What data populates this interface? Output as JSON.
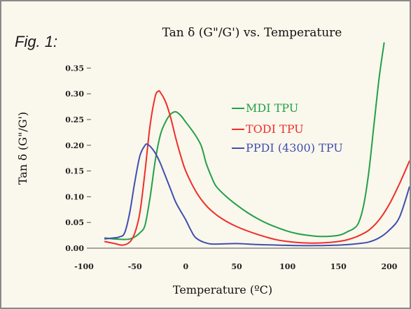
{
  "figure_label": "Fig. 1:",
  "chart_data": {
    "type": "line",
    "title": "Tan δ (G\"/G') vs. Temperature",
    "xlabel": "Temperature (ºC)",
    "ylabel": "Tan δ (G\"/G')",
    "xlim": [
      -100,
      220
    ],
    "ylim": [
      0,
      0.36
    ],
    "xticks": [
      -100,
      -50,
      0,
      50,
      100,
      150,
      200
    ],
    "xtick_labels": [
      "-100",
      "-50",
      "0",
      "50",
      "100",
      "150",
      "200"
    ],
    "yticks": [
      0,
      0.05,
      0.1,
      0.15,
      0.2,
      0.25,
      0.3,
      0.35
    ],
    "ytick_labels": [
      "0.00",
      "0.05",
      "0.10",
      "0.15",
      "0.20",
      "0.25",
      "0.30",
      "0.35"
    ],
    "grid": false,
    "legend_position": "inside-upper-right",
    "series": [
      {
        "name": "MDI TPU",
        "color": "#22a04a",
        "x": [
          -80,
          -70,
          -60,
          -55,
          -50,
          -45,
          -40,
          -35,
          -30,
          -25,
          -20,
          -15,
          -10,
          -5,
          0,
          5,
          10,
          15,
          18,
          20,
          25,
          30,
          40,
          50,
          60,
          70,
          80,
          90,
          100,
          110,
          120,
          130,
          140,
          150,
          155,
          160,
          165,
          170,
          175,
          180,
          185,
          190,
          195
        ],
        "y": [
          0.02,
          0.018,
          0.017,
          0.018,
          0.022,
          0.03,
          0.045,
          0.1,
          0.17,
          0.22,
          0.245,
          0.26,
          0.265,
          0.258,
          0.245,
          0.232,
          0.218,
          0.2,
          0.18,
          0.165,
          0.14,
          0.12,
          0.1,
          0.084,
          0.07,
          0.058,
          0.048,
          0.04,
          0.033,
          0.028,
          0.025,
          0.023,
          0.023,
          0.025,
          0.028,
          0.033,
          0.038,
          0.05,
          0.085,
          0.15,
          0.24,
          0.33,
          0.4
        ]
      },
      {
        "name": "TODI TPU",
        "color": "#ee2e2a",
        "x": [
          -80,
          -70,
          -62,
          -55,
          -50,
          -45,
          -40,
          -35,
          -30,
          -27,
          -25,
          -20,
          -15,
          -10,
          -5,
          0,
          10,
          20,
          30,
          40,
          50,
          60,
          70,
          80,
          90,
          100,
          110,
          120,
          130,
          140,
          150,
          160,
          170,
          180,
          190,
          200,
          210,
          220
        ],
        "y": [
          0.013,
          0.009,
          0.006,
          0.012,
          0.03,
          0.07,
          0.15,
          0.24,
          0.295,
          0.305,
          0.303,
          0.285,
          0.255,
          0.215,
          0.18,
          0.15,
          0.11,
          0.083,
          0.065,
          0.052,
          0.042,
          0.034,
          0.027,
          0.021,
          0.016,
          0.013,
          0.011,
          0.01,
          0.01,
          0.011,
          0.013,
          0.017,
          0.024,
          0.035,
          0.055,
          0.085,
          0.125,
          0.17
        ]
      },
      {
        "name": "PPDI (4300) TPU",
        "color": "#3f4fb0",
        "x": [
          -80,
          -70,
          -65,
          -60,
          -55,
          -50,
          -45,
          -40,
          -38,
          -35,
          -30,
          -25,
          -20,
          -15,
          -10,
          -5,
          0,
          5,
          10,
          20,
          30,
          50,
          70,
          90,
          110,
          130,
          150,
          160,
          170,
          180,
          190,
          200,
          210,
          220
        ],
        "y": [
          0.018,
          0.02,
          0.022,
          0.03,
          0.07,
          0.13,
          0.18,
          0.2,
          0.202,
          0.198,
          0.185,
          0.165,
          0.14,
          0.115,
          0.09,
          0.072,
          0.055,
          0.035,
          0.02,
          0.01,
          0.008,
          0.009,
          0.007,
          0.006,
          0.005,
          0.005,
          0.006,
          0.007,
          0.009,
          0.012,
          0.02,
          0.035,
          0.06,
          0.12
        ]
      }
    ]
  }
}
